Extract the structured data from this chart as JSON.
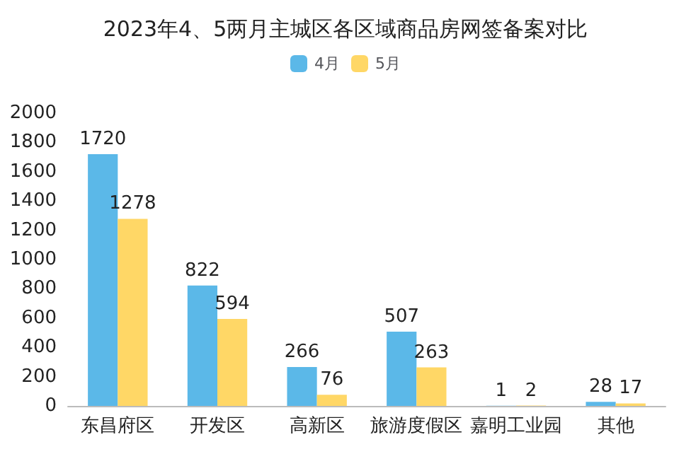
{
  "chart_data": {
    "type": "bar",
    "title": "2023年4、5两月主城区各区域商品房网签备案对比",
    "categories": [
      "东昌府区",
      "开发区",
      "高新区",
      "旅游度假区",
      "嘉明工业园",
      "其他"
    ],
    "series": [
      {
        "name": "4月",
        "color": "#5bb8e8",
        "values": [
          1720,
          822,
          266,
          507,
          1,
          28
        ]
      },
      {
        "name": "5月",
        "color": "#ffd766",
        "values": [
          1278,
          594,
          76,
          263,
          2,
          17
        ]
      }
    ],
    "ylim": [
      0,
      2000
    ],
    "yticks": [
      0,
      200,
      400,
      600,
      800,
      1000,
      1200,
      1400,
      1600,
      1800,
      2000
    ],
    "grid": false,
    "legend": "top",
    "data_labels": true
  }
}
